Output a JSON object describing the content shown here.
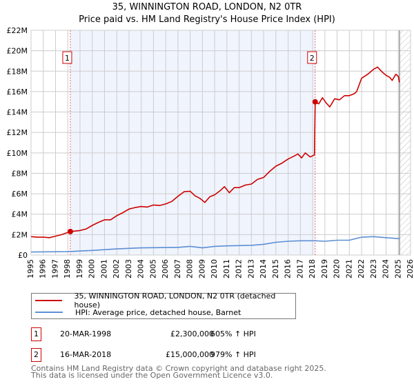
{
  "chart_data": {
    "type": "line",
    "title": "35, WINNINGTON ROAD, LONDON, N2 0TR",
    "subtitle": "Price paid vs. HM Land Registry's House Price Index (HPI)",
    "xlim": [
      1995,
      2026
    ],
    "ylim": [
      0,
      22000000
    ],
    "x_ticks": [
      "1995",
      "1996",
      "1997",
      "1998",
      "1999",
      "2000",
      "2001",
      "2002",
      "2003",
      "2004",
      "2005",
      "2006",
      "2007",
      "2008",
      "2009",
      "2010",
      "2011",
      "2012",
      "2013",
      "2014",
      "2015",
      "2016",
      "2017",
      "2018",
      "2019",
      "2020",
      "2021",
      "2022",
      "2023",
      "2024",
      "2025",
      "2026"
    ],
    "y_ticks": [
      {
        "v": 0,
        "label": "£0"
      },
      {
        "v": 2000000,
        "label": "£2M"
      },
      {
        "v": 4000000,
        "label": "£4M"
      },
      {
        "v": 6000000,
        "label": "£6M"
      },
      {
        "v": 8000000,
        "label": "£8M"
      },
      {
        "v": 10000000,
        "label": "£10M"
      },
      {
        "v": 12000000,
        "label": "£12M"
      },
      {
        "v": 14000000,
        "label": "£14M"
      },
      {
        "v": 16000000,
        "label": "£16M"
      },
      {
        "v": 18000000,
        "label": "£18M"
      },
      {
        "v": 20000000,
        "label": "£20M"
      },
      {
        "v": 22000000,
        "label": "£22M"
      }
    ],
    "grid": true,
    "shaded_range": [
      1998.21,
      2018.21
    ],
    "forecast_hatch_from": 2025.1,
    "series": [
      {
        "name": "35, WINNINGTON ROAD, LONDON, N2 0TR (detached house)",
        "color": "#cc0000",
        "x": [
          1995,
          1995.5,
          1996,
          1996.5,
          1997,
          1997.5,
          1998.21,
          1999,
          1999.5,
          2000,
          2000.5,
          2001,
          2001.5,
          2002,
          2002.5,
          2003,
          2003.5,
          2004,
          2004.5,
          2005,
          2005.5,
          2006,
          2006.5,
          2007,
          2007.5,
          2008,
          2008.4,
          2008.8,
          2009.2,
          2009.6,
          2010,
          2010.5,
          2010.8,
          2011.2,
          2011.6,
          2012,
          2012.5,
          2013,
          2013.5,
          2014,
          2014.5,
          2015,
          2015.5,
          2016,
          2016.5,
          2016.8,
          2017.1,
          2017.4,
          2017.8,
          2018.15,
          2018.21,
          2018.5,
          2018.8,
          2019.1,
          2019.4,
          2019.8,
          2020.2,
          2020.6,
          2021,
          2021.4,
          2021.6,
          2022,
          2022.5,
          2023,
          2023.3,
          2023.7,
          2024,
          2024.3,
          2024.5,
          2024.8,
          2025.0,
          2025.1
        ],
        "y": [
          1800000,
          1750000,
          1750000,
          1700000,
          1850000,
          2000000,
          2300000,
          2400000,
          2550000,
          2900000,
          3200000,
          3450000,
          3450000,
          3850000,
          4150000,
          4500000,
          4650000,
          4750000,
          4700000,
          4900000,
          4850000,
          5000000,
          5250000,
          5750000,
          6200000,
          6250000,
          5800000,
          5550000,
          5150000,
          5700000,
          5900000,
          6350000,
          6700000,
          6100000,
          6600000,
          6600000,
          6850000,
          6950000,
          7400000,
          7600000,
          8200000,
          8700000,
          9000000,
          9400000,
          9700000,
          9900000,
          9500000,
          10000000,
          9600000,
          9800000,
          15000000,
          14800000,
          15400000,
          14900000,
          14500000,
          15300000,
          15200000,
          15600000,
          15600000,
          15800000,
          16000000,
          17300000,
          17700000,
          18200000,
          18400000,
          17900000,
          17600000,
          17400000,
          17100000,
          17700000,
          17500000,
          16900000
        ]
      },
      {
        "name": "HPI: Average price, detached house, Barnet",
        "color": "#5b8fd4",
        "x": [
          1995,
          1998,
          2000,
          2002,
          2004,
          2007,
          2008,
          2009,
          2010,
          2011,
          2013,
          2014,
          2015,
          2016,
          2017,
          2018.2,
          2019,
          2020,
          2021,
          2022,
          2023,
          2024,
          2025.1
        ],
        "y": [
          300000,
          330000,
          450000,
          600000,
          700000,
          750000,
          850000,
          700000,
          850000,
          900000,
          950000,
          1050000,
          1250000,
          1350000,
          1400000,
          1400000,
          1350000,
          1450000,
          1450000,
          1750000,
          1800000,
          1700000,
          1600000
        ]
      }
    ],
    "annotations": [
      {
        "id": "1",
        "x": 1998.21,
        "y": 2300000
      },
      {
        "id": "2",
        "x": 2018.21,
        "y": 15000000
      }
    ]
  },
  "legend": {
    "items": [
      {
        "label": "35, WINNINGTON ROAD, LONDON, N2 0TR (detached house)",
        "color": "#cc0000"
      },
      {
        "label": "HPI: Average price, detached house, Barnet",
        "color": "#5b8fd4"
      }
    ]
  },
  "transactions": [
    {
      "id": "1",
      "date": "20-MAR-1998",
      "price": "£2,300,000",
      "hpi": "605% ↑ HPI"
    },
    {
      "id": "2",
      "date": "16-MAR-2018",
      "price": "£15,000,000",
      "hpi": "979% ↑ HPI"
    }
  ],
  "footer": {
    "line1": "Contains HM Land Registry data © Crown copyright and database right 2025.",
    "line2": "This data is licensed under the Open Government Licence v3.0."
  }
}
